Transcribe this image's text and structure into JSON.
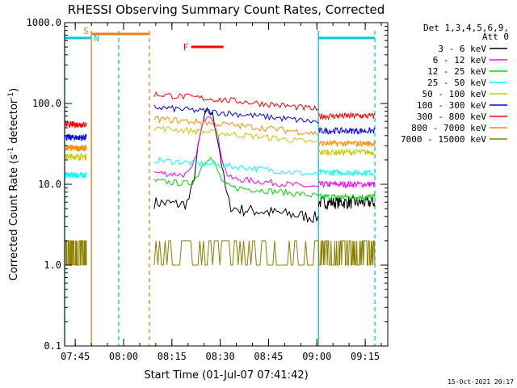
{
  "chart_data": {
    "type": "line",
    "title": "RHESSI Observing Summary Count Rates, Corrected",
    "xlabel": "Start Time (01-Jul-07 07:41:42)",
    "ylabel_main": "Corrected Count Rate (s",
    "ylabel_sup1": "-1",
    "ylabel_mid": " detector",
    "ylabel_sup2": "-1",
    "ylabel_end": ")",
    "yscale": "log",
    "ylim": [
      0.1,
      1000
    ],
    "xlim": [
      "07:41:42",
      "09:22:00"
    ],
    "xticks": [
      "07:45",
      "08:00",
      "08:15",
      "08:30",
      "08:45",
      "09:00",
      "09:15"
    ],
    "yticks": [
      "0.1",
      "1.0",
      "10.0",
      "100.0",
      "1000.0"
    ],
    "legend_header": [
      "Det 1,3,4,5,6,9,",
      "Att 0"
    ],
    "legend_position": "top-right outside",
    "timestamp": "15-Oct-2021 20:17",
    "flags": [
      {
        "label": "S",
        "color": "#e67e22",
        "start": "07:50:00",
        "end": "08:08:00"
      },
      {
        "label": "N",
        "color": "#00cccc",
        "start": "07:41:42",
        "end": "07:50:00"
      },
      {
        "label": "N",
        "color": "#00cccc",
        "start": "09:00:30",
        "end": "09:18:00"
      },
      {
        "label": "F",
        "color": "#ff0000",
        "start": "08:21:00",
        "end": "08:31:00"
      }
    ],
    "vlines": [
      {
        "time": "07:41:42",
        "color": "#00cccc",
        "style": "solid"
      },
      {
        "time": "07:50:00",
        "color": "#e67e22",
        "style": "solid"
      },
      {
        "time": "07:58:30",
        "color": "#00cccc",
        "style": "dashed"
      },
      {
        "time": "08:08:00",
        "color": "#e67e22",
        "style": "dashed"
      },
      {
        "time": "09:00:30",
        "color": "#00cccc",
        "style": "solid"
      },
      {
        "time": "09:18:00",
        "color": "#00cccc",
        "style": "dashed"
      }
    ],
    "segments": [
      [
        "07:42:00",
        "07:48:30"
      ],
      [
        "08:09:30",
        "09:00:30"
      ],
      [
        "09:00:30",
        "09:18:00"
      ]
    ],
    "series": [
      {
        "name": "3 - 6 keV",
        "color": "#000000",
        "values": [
          0.0,
          6.0,
          6.0
        ]
      },
      {
        "name": "6 - 12 keV",
        "color": "#ff00ff",
        "values": [
          0.0,
          14.0,
          10.0
        ]
      },
      {
        "name": "12 - 25 keV",
        "color": "#00dd00",
        "values": [
          0.0,
          11.0,
          7.0
        ]
      },
      {
        "name": "25 - 50 keV",
        "color": "#00ffff",
        "values": [
          13.0,
          20.0,
          14.0
        ]
      },
      {
        "name": "50 - 100 keV",
        "color": "#c8c800",
        "values": [
          22.0,
          50.0,
          25.0
        ]
      },
      {
        "name": "100 - 300 keV",
        "color": "#0000ff",
        "values": [
          38.0,
          90.0,
          46.0
        ]
      },
      {
        "name": "300 - 800 keV",
        "color": "#ff0000",
        "values": [
          55.0,
          130.0,
          70.0
        ]
      },
      {
        "name": "800 - 7000 keV",
        "color": "#ff8c00",
        "values": [
          28.0,
          65.0,
          32.0
        ]
      },
      {
        "name": "7000 - 15000 keV",
        "color": "#8b8000",
        "values": [
          1.5,
          1.0,
          1.8
        ]
      }
    ]
  }
}
